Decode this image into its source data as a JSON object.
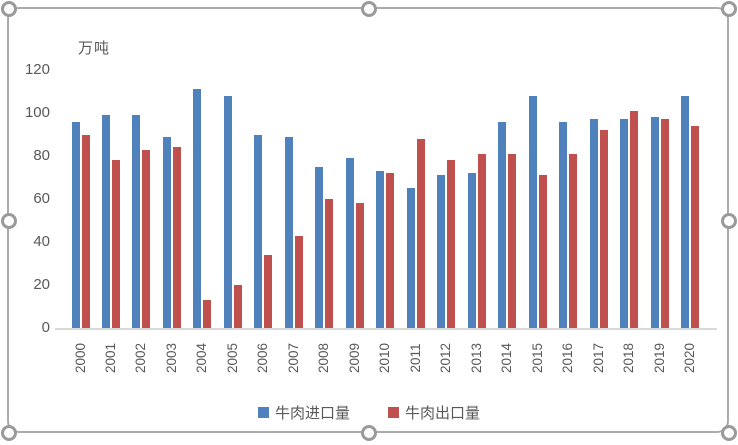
{
  "chart": {
    "unit_label": "万吨"
  },
  "selection": {
    "handle_positions": [
      "top-left",
      "top-middle",
      "top-right",
      "middle-left",
      "middle-right",
      "bottom-left",
      "bottom-middle",
      "bottom-right"
    ]
  },
  "chart_data": {
    "type": "bar",
    "title": "",
    "ylabel": "万吨",
    "xlabel": "",
    "categories": [
      "2000",
      "2001",
      "2002",
      "2003",
      "2004",
      "2005",
      "2006",
      "2007",
      "2008",
      "2009",
      "2010",
      "2011",
      "2012",
      "2013",
      "2014",
      "2015",
      "2016",
      "2017",
      "2018",
      "2019",
      "2020"
    ],
    "series": [
      {
        "name": "牛肉进口量",
        "color": "#4F81BD",
        "values": [
          96,
          99,
          99,
          89,
          111,
          108,
          90,
          89,
          75,
          79,
          73,
          65,
          71,
          72,
          96,
          108,
          96,
          97,
          97,
          98,
          108
        ]
      },
      {
        "name": "牛肉出口量",
        "color": "#C0504D",
        "values": [
          90,
          78,
          83,
          84,
          13,
          20,
          34,
          43,
          60,
          58,
          72,
          88,
          78,
          81,
          81,
          71,
          81,
          92,
          101,
          97,
          94
        ]
      }
    ],
    "ylim": [
      0,
      120
    ],
    "y_ticks": [
      0,
      20,
      40,
      60,
      80,
      100,
      120
    ],
    "grid": false,
    "legend_position": "bottom",
    "x_tick_rotation": 90,
    "colors": {
      "axis_line": "#d9d9d9",
      "tick_text": "#595959"
    }
  }
}
